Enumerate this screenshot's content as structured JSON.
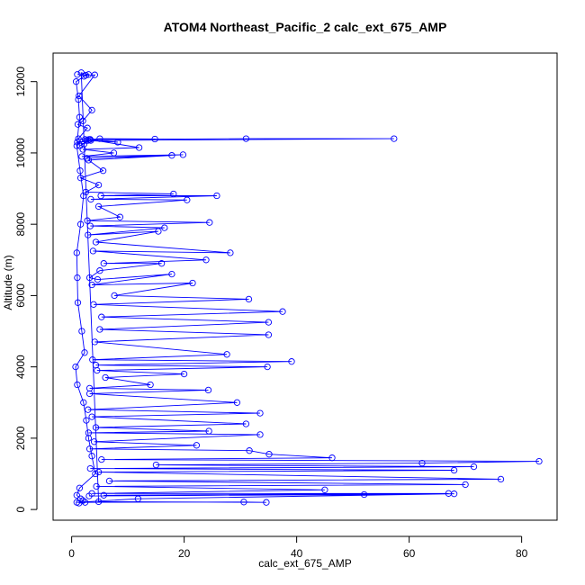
{
  "chart_data": {
    "type": "scatter",
    "title": "ATOM4 Northeast_Pacific_2 calc_ext_675_AMP",
    "xlabel": "calc_ext_675_AMP",
    "ylabel": "Altitude (m)",
    "xlim": [
      -3.3,
      86.3
    ],
    "ylim": [
      -300,
      12800
    ],
    "x_ticks": [
      0,
      20,
      40,
      60,
      80
    ],
    "x_tick_labels": [
      "0",
      "20",
      "40",
      "60",
      "80"
    ],
    "y_ticks": [
      0,
      2000,
      4000,
      6000,
      8000,
      10000,
      12000
    ],
    "y_tick_labels": [
      "0",
      "2000",
      "4000",
      "6000",
      "8000",
      "10000",
      "12000"
    ],
    "grid": false,
    "legend": "none",
    "color": "#0000ff",
    "marker": "open-circle",
    "connected": true,
    "series": [
      {
        "x": [
          1.0,
          2.5,
          4.1,
          1.3,
          3.6,
          2.0,
          1.1,
          2.8,
          1.2,
          3.4,
          1.0,
          2.2,
          2.9,
          1.5,
          3.3,
          5.0,
          14.8,
          2.4,
          8.2,
          2.6,
          57.3,
          31.0,
          3.1,
          12.0,
          2.0,
          7.5,
          1.8,
          19.8,
          2.7,
          17.8,
          3.0,
          5.6,
          1.6,
          4.8,
          2.5,
          18.1,
          5.2,
          25.8,
          3.4,
          20.5,
          4.8,
          8.6,
          2.8,
          24.5,
          3.3,
          16.5,
          2.9,
          15.4,
          4.3,
          28.2,
          3.8,
          23.9,
          5.7,
          16.0,
          5.0,
          3.2,
          4.6,
          17.8,
          3.6,
          21.5,
          7.6,
          31.5,
          3.9,
          37.5,
          5.3,
          35.0,
          5.0,
          35.0,
          4.1,
          27.6,
          3.7,
          39.1,
          4.3,
          34.8,
          4.5,
          20.0,
          6.0,
          14.0,
          3.2,
          24.3,
          3.2,
          29.4,
          2.9,
          33.5,
          3.6,
          31.0,
          4.3,
          24.4,
          3.0,
          33.5,
          4.0,
          22.2,
          3.2,
          31.6,
          35.1,
          46.3,
          5.3,
          83.1,
          62.3,
          15.0,
          71.5,
          3.3,
          68.0,
          4.8,
          76.3,
          6.7,
          70.0,
          4.4,
          45.0,
          3.6,
          67.0,
          5.7,
          52.0,
          3.1,
          68.0,
          11.8,
          0.9,
          30.6,
          34.6,
          4.8,
          1.7,
          3.0,
          2.2,
          0.8,
          1.2,
          1.4,
          0.9,
          1.5,
          2.1,
          1.6,
          0.9,
          1.0,
          1.1,
          1.8,
          2.3,
          0.7,
          1.0,
          2.1,
          2.6,
          3.0,
          3.6,
          4.2,
          1.4,
          0.9,
          1.6,
          2.0,
          2.4,
          1.3
        ],
        "y": [
          12200,
          12180,
          12190,
          11600,
          11200,
          10900,
          10800,
          10700,
          10400,
          10350,
          10300,
          10250,
          10350,
          10200,
          10380,
          10400,
          10390,
          10380,
          10300,
          10350,
          10400,
          10400,
          10380,
          10150,
          10100,
          10000,
          9900,
          9950,
          9850,
          9930,
          9800,
          9500,
          9300,
          9100,
          8900,
          8850,
          8800,
          8800,
          8700,
          8680,
          8500,
          8200,
          8100,
          8050,
          7950,
          7900,
          7700,
          7800,
          7500,
          7200,
          7250,
          7000,
          6900,
          6900,
          6700,
          6500,
          6450,
          6600,
          6300,
          6350,
          6000,
          5900,
          5750,
          5550,
          5400,
          5250,
          5050,
          4900,
          4700,
          4350,
          4200,
          4150,
          4050,
          4000,
          3900,
          3800,
          3700,
          3500,
          3400,
          3350,
          3250,
          3000,
          2800,
          2700,
          2600,
          2400,
          2300,
          2200,
          2150,
          2100,
          1900,
          1800,
          1700,
          1650,
          1550,
          1450,
          1400,
          1350,
          1300,
          1250,
          1200,
          1150,
          1100,
          1050,
          850,
          800,
          700,
          650,
          550,
          450,
          450,
          400,
          420,
          380,
          440,
          300,
          200,
          210,
          200,
          220,
          12250,
          12200,
          12150,
          12000,
          11500,
          11000,
          10200,
          9500,
          8800,
          8000,
          7200,
          6500,
          5800,
          5000,
          4400,
          4000,
          3500,
          3000,
          2500,
          2000,
          1500,
          1000,
          600,
          400,
          300,
          250,
          200,
          180
        ]
      }
    ]
  }
}
